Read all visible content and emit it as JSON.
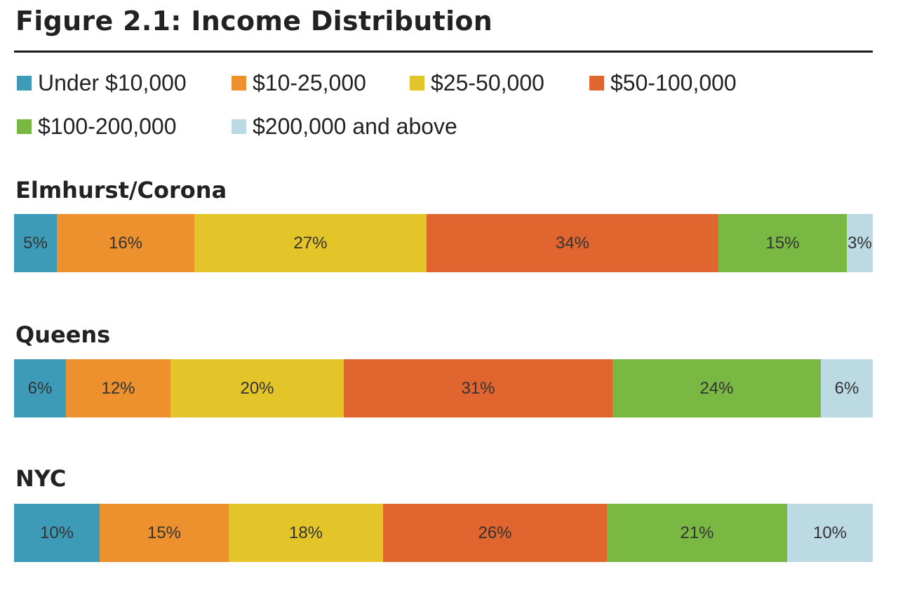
{
  "chart_data": {
    "type": "bar",
    "orientation": "horizontal-stacked-100",
    "title": "Figure 2.1: Income Distribution",
    "legend_position": "top",
    "categories": [
      "Elmhurst/Corona",
      "Queens",
      "NYC"
    ],
    "series": [
      {
        "name": "Under $10,000",
        "color": "#3e9bb8",
        "values": [
          5,
          6,
          10
        ],
        "labels": [
          "5%",
          "6%",
          "10%"
        ]
      },
      {
        "name": "$10-25,000",
        "color": "#ec912e",
        "values": [
          16,
          12,
          15
        ],
        "labels": [
          "16%",
          "12%",
          "15%"
        ]
      },
      {
        "name": "$25-50,000",
        "color": "#e3c52a",
        "values": [
          27,
          20,
          18
        ],
        "labels": [
          "27%",
          "20%",
          "18%"
        ]
      },
      {
        "name": "$50-100,000",
        "color": "#e1652e",
        "values": [
          34,
          31,
          26
        ],
        "labels": [
          "34%",
          "31%",
          "26%"
        ]
      },
      {
        "name": "$100-200,000",
        "color": "#78b843",
        "values": [
          15,
          24,
          21
        ],
        "labels": [
          "15%",
          "24%",
          "21%"
        ]
      },
      {
        "name": "$200,000 and above",
        "color": "#bcdae3",
        "values": [
          3,
          6,
          10
        ],
        "labels": [
          "3%",
          "6%",
          "10%"
        ]
      }
    ]
  }
}
